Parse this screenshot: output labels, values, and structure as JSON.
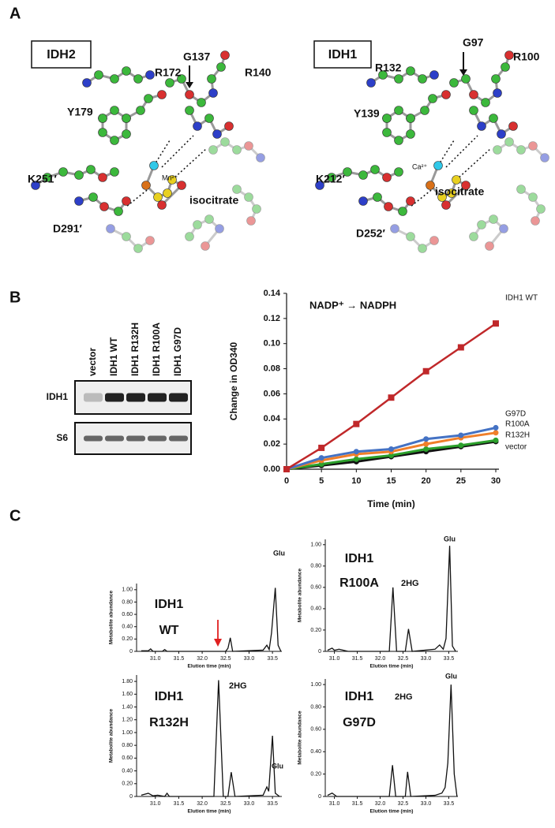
{
  "panel_labels": [
    "A",
    "B",
    "C"
  ],
  "structures": [
    {
      "name": "IDH2",
      "labels": [
        "R172",
        "G137",
        "R140",
        "Y179",
        "K251′",
        "Mn²⁺",
        "isocitrate",
        "D291′"
      ]
    },
    {
      "name": "IDH1",
      "labels": [
        "R132",
        "G97",
        "R100",
        "Y139",
        "K212′",
        "Ca²⁺",
        "isocitrate",
        "D252′"
      ]
    }
  ],
  "blot": {
    "lanes": [
      "vector",
      "IDH1 WT",
      "IDH1 R132H",
      "IDH1 R100A",
      "IDH1 G97D"
    ],
    "rows": [
      "IDH1",
      "S6"
    ]
  },
  "chart_data": [
    {
      "type": "line",
      "annotation": "NADP⁺ → NADPH",
      "x_label": "Time (min)",
      "y_label": "Change in OD340",
      "x": [
        0,
        5,
        10,
        15,
        20,
        25,
        30
      ],
      "xlim": [
        0,
        30
      ],
      "xticks": [
        0,
        5,
        10,
        15,
        20,
        25,
        30
      ],
      "ylim": [
        0,
        0.14
      ],
      "yticks": [
        {
          "value": 0,
          "label": "0.00"
        },
        {
          "value": 0.02,
          "label": "0.02"
        },
        {
          "value": 0.04,
          "label": "0.04"
        },
        {
          "value": 0.06,
          "label": "0.06"
        },
        {
          "value": 0.08,
          "label": "0.08"
        },
        {
          "value": 0.1,
          "label": "0.10"
        },
        {
          "value": 0.12,
          "label": "0.12"
        },
        {
          "value": 0.14,
          "label": "0.14"
        }
      ],
      "series": [
        {
          "name": "IDH1 WT",
          "color": "#c0282a",
          "marker": "square",
          "values": [
            0,
            0.017,
            0.036,
            0.057,
            0.078,
            0.097,
            0.116
          ]
        },
        {
          "name": "G97D",
          "color": "#4472c4",
          "marker": "circle",
          "values": [
            0,
            0.009,
            0.014,
            0.016,
            0.024,
            0.027,
            0.033
          ]
        },
        {
          "name": "R100A",
          "color": "#f07f2a",
          "marker": "circle",
          "values": [
            0,
            0.007,
            0.012,
            0.014,
            0.02,
            0.025,
            0.029
          ]
        },
        {
          "name": "R132H",
          "color": "#2ca02c",
          "marker": "circle",
          "values": [
            0,
            0.004,
            0.008,
            0.011,
            0.016,
            0.019,
            0.023
          ]
        },
        {
          "name": "vector",
          "color": "#111111",
          "marker": "circle",
          "values": [
            0,
            0.003,
            0.006,
            0.01,
            0.014,
            0.018,
            0.022
          ]
        }
      ]
    },
    {
      "type": "chromatogram",
      "label": [
        "IDH1",
        "WT"
      ],
      "label_color": "#c0282a",
      "color": "#111111",
      "annotations": [
        "Glu"
      ],
      "x_label": "Elution time (min)",
      "y_label": "Metabolite abundance",
      "x": [
        30.7,
        30.85,
        30.9,
        30.95,
        31.15,
        31.2,
        31.25,
        32.5,
        32.55,
        32.6,
        32.65,
        33.3,
        33.38,
        33.43,
        33.48,
        33.56,
        33.62,
        33.68
      ],
      "values": [
        0.01,
        0.01,
        0.04,
        0,
        0,
        0.03,
        0,
        0,
        0.05,
        0.22,
        0,
        0.02,
        0.1,
        0.03,
        0.3,
        1.03,
        0.1,
        0
      ],
      "xlim": [
        30.6,
        33.7
      ],
      "xticks": [
        {
          "value": 31,
          "label": "31.0"
        },
        {
          "value": 31.5,
          "label": "31.5"
        },
        {
          "value": 32,
          "label": "32.0"
        },
        {
          "value": 32.5,
          "label": "32.5"
        },
        {
          "value": 33,
          "label": "33.0"
        },
        {
          "value": 33.5,
          "label": "33.5"
        }
      ],
      "ylim": [
        0,
        1.1
      ],
      "yticks": [
        0,
        {
          "value": 0.2,
          "label": "0.20"
        },
        {
          "value": 0.4,
          "label": "0.40"
        },
        {
          "value": 0.6,
          "label": "0.60"
        },
        {
          "value": 0.8,
          "label": "0.80"
        },
        {
          "value": 1,
          "label": "1.00"
        }
      ]
    },
    {
      "type": "chromatogram",
      "label": [
        "IDH1",
        "R100A"
      ],
      "label_color": "#f07f2a",
      "color": "#111111",
      "annotations": [
        "2HG",
        "Glu"
      ],
      "x_label": "Elution time (min)",
      "y_label": "Metabolite abundance",
      "x": [
        30.85,
        30.95,
        31.0,
        31.1,
        31.3,
        31.6,
        32.2,
        32.28,
        32.36,
        32.55,
        32.62,
        32.7,
        33.2,
        33.3,
        33.38,
        33.44,
        33.52,
        33.58,
        33.65
      ],
      "values": [
        0.01,
        0.03,
        0.01,
        0.02,
        0,
        0,
        0,
        0.6,
        0,
        0,
        0.21,
        0,
        0.02,
        0.06,
        0.02,
        0.12,
        0.99,
        0.05,
        0
      ],
      "xlim": [
        30.8,
        33.7
      ],
      "xticks": [
        {
          "value": 31,
          "label": "31.0"
        },
        {
          "value": 31.5,
          "label": "31.5"
        },
        {
          "value": 32,
          "label": "32.0"
        },
        {
          "value": 32.5,
          "label": "32.5"
        },
        {
          "value": 33,
          "label": "33.0"
        },
        {
          "value": 33.5,
          "label": "33.5"
        }
      ],
      "ylim": [
        0,
        1.05
      ],
      "yticks": [
        0,
        {
          "value": 0.2,
          "label": "0.20"
        },
        {
          "value": 0.4,
          "label": "0.40"
        },
        {
          "value": 0.6,
          "label": "0.60"
        },
        {
          "value": 0.8,
          "label": "0.80"
        },
        {
          "value": 1,
          "label": "1.00"
        }
      ]
    },
    {
      "type": "chromatogram",
      "label": [
        "IDH1",
        "R132H"
      ],
      "label_color": "#2ca02c",
      "color": "#111111",
      "annotations": [
        "2HG",
        "Glu"
      ],
      "x_label": "Elution time (min)",
      "y_label": "Metabolite abundance",
      "x": [
        30.7,
        30.85,
        30.95,
        31.05,
        31.2,
        31.25,
        31.3,
        32.25,
        32.35,
        32.45,
        32.55,
        32.62,
        32.7,
        33.3,
        33.38,
        33.42,
        33.5,
        33.56,
        33.65
      ],
      "values": [
        0.02,
        0.05,
        0.01,
        0.02,
        0,
        0.05,
        0,
        0,
        1.82,
        0,
        0,
        0.38,
        0,
        0.02,
        0.15,
        0.08,
        0.95,
        0.05,
        0
      ],
      "xlim": [
        30.6,
        33.7
      ],
      "xticks": [
        {
          "value": 31,
          "label": "31.0"
        },
        {
          "value": 31.5,
          "label": "31.5"
        },
        {
          "value": 32,
          "label": "32.0"
        },
        {
          "value": 32.5,
          "label": "32.5"
        },
        {
          "value": 33,
          "label": "33.0"
        },
        {
          "value": 33.5,
          "label": "33.5"
        }
      ],
      "ylim": [
        0,
        1.9
      ],
      "yticks": [
        0,
        {
          "value": 0.2,
          "label": "0.20"
        },
        {
          "value": 0.4,
          "label": "0.40"
        },
        {
          "value": 0.6,
          "label": "0.60"
        },
        {
          "value": 0.8,
          "label": "0.80"
        },
        {
          "value": 1,
          "label": "1.00"
        },
        {
          "value": 1.2,
          "label": "1.20"
        },
        {
          "value": 1.4,
          "label": "1.40"
        },
        {
          "value": 1.6,
          "label": "1.60"
        },
        {
          "value": 1.8,
          "label": "1.80"
        }
      ]
    },
    {
      "type": "chromatogram",
      "label": [
        "IDH1",
        "G97D"
      ],
      "label_color": "#4472c4",
      "color": "#111111",
      "annotations": [
        "2HG",
        "Glu"
      ],
      "x_label": "Elution time (min)",
      "y_label": "Metabolite abundance",
      "x": [
        30.85,
        30.95,
        31.05,
        31.2,
        32.2,
        32.27,
        32.34,
        32.55,
        32.6,
        32.67,
        33.2,
        33.35,
        33.42,
        33.48,
        33.55,
        33.62,
        33.68
      ],
      "values": [
        0.01,
        0.03,
        0,
        0,
        0,
        0.28,
        0,
        0,
        0.22,
        0,
        0.01,
        0.03,
        0.08,
        0.3,
        1.0,
        0.2,
        0
      ],
      "xlim": [
        30.8,
        33.7
      ],
      "xticks": [
        {
          "value": 31,
          "label": "31.0"
        },
        {
          "value": 31.5,
          "label": "31.5"
        },
        {
          "value": 32,
          "label": "32.0"
        },
        {
          "value": 32.5,
          "label": "32.5"
        },
        {
          "value": 33,
          "label": "33.0"
        },
        {
          "value": 33.5,
          "label": "33.5"
        }
      ],
      "ylim": [
        0,
        1.05
      ],
      "yticks": [
        0,
        {
          "value": 0.2,
          "label": "0.20"
        },
        {
          "value": 0.4,
          "label": "0.40"
        },
        {
          "value": 0.6,
          "label": "0.60"
        },
        {
          "value": 0.8,
          "label": "0.80"
        },
        {
          "value": 1,
          "label": "1.00"
        }
      ]
    }
  ]
}
